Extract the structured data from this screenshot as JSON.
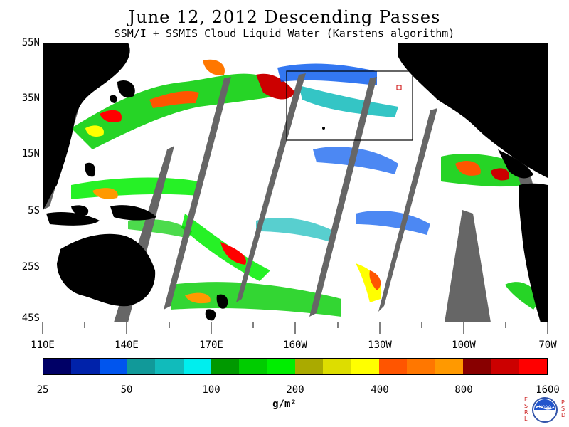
{
  "title": "June 12, 2012  Descending Passes",
  "subtitle": "SSM/I + SSMIS Cloud Liquid Water (Karstens algorithm)",
  "lat_labels": [
    "55N",
    "35N",
    "15N",
    "5S",
    "25S",
    "45S"
  ],
  "lon_labels": [
    "110E",
    "140E",
    "170E",
    "160W",
    "130W",
    "100W",
    "70W"
  ],
  "colorbar": {
    "colors": [
      "#000066",
      "#0022aa",
      "#0055ee",
      "#119999",
      "#11bbbb",
      "#00eeee",
      "#009900",
      "#00cc00",
      "#00ee00",
      "#aaaa00",
      "#dddd00",
      "#ffff00",
      "#ff5500",
      "#ff7700",
      "#ff9900",
      "#880000",
      "#cc0000",
      "#ff0000"
    ],
    "labels": [
      "25",
      "50",
      "100",
      "200",
      "400",
      "800",
      "1600"
    ],
    "units": "g/m²"
  },
  "logo": {
    "left_letters": "ESRL",
    "right_letters": "PSD",
    "text": "NOAA"
  },
  "colors": {
    "land": "#000000",
    "swath_gap": "#666666",
    "ocean": "#ffffff",
    "box_outline": "#000000"
  }
}
